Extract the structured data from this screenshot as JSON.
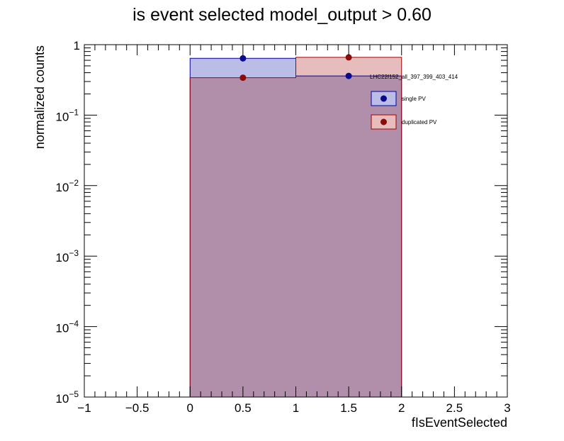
{
  "chart_data": {
    "type": "bar",
    "title": "is event selected  model_output > 0.60",
    "xlabel": "fIsEventSelected",
    "ylabel": "normalized counts",
    "xlim": [
      -1,
      3
    ],
    "ylim": [
      1e-05,
      1
    ],
    "yscale": "log",
    "xticks": [
      "−1",
      "−0.5",
      "0",
      "0.5",
      "1",
      "1.5",
      "2",
      "2.5",
      "3"
    ],
    "xtick_values": [
      -1,
      -0.5,
      0,
      0.5,
      1,
      1.5,
      2,
      2.5,
      3
    ],
    "ytick_exponents": [
      -5,
      -4,
      -3,
      -2,
      -1,
      0
    ],
    "bins": [
      [
        0,
        1
      ],
      [
        1,
        2
      ]
    ],
    "series": [
      {
        "name": "single PV",
        "values": [
          0.64,
          0.36
        ],
        "fill": "#bcbde6",
        "line": "#0000a0",
        "marker": "#0a0a8c"
      },
      {
        "name": "duplicated PV",
        "values": [
          0.34,
          0.66
        ],
        "fill": "#e6bcbd",
        "line": "#a00000",
        "marker": "#8c0a0a"
      }
    ],
    "overlap_fill": "#b18fab",
    "legend": {
      "header": "LHC22f152_all_397_399_403_414",
      "placement": "top-right"
    },
    "grid": false
  }
}
